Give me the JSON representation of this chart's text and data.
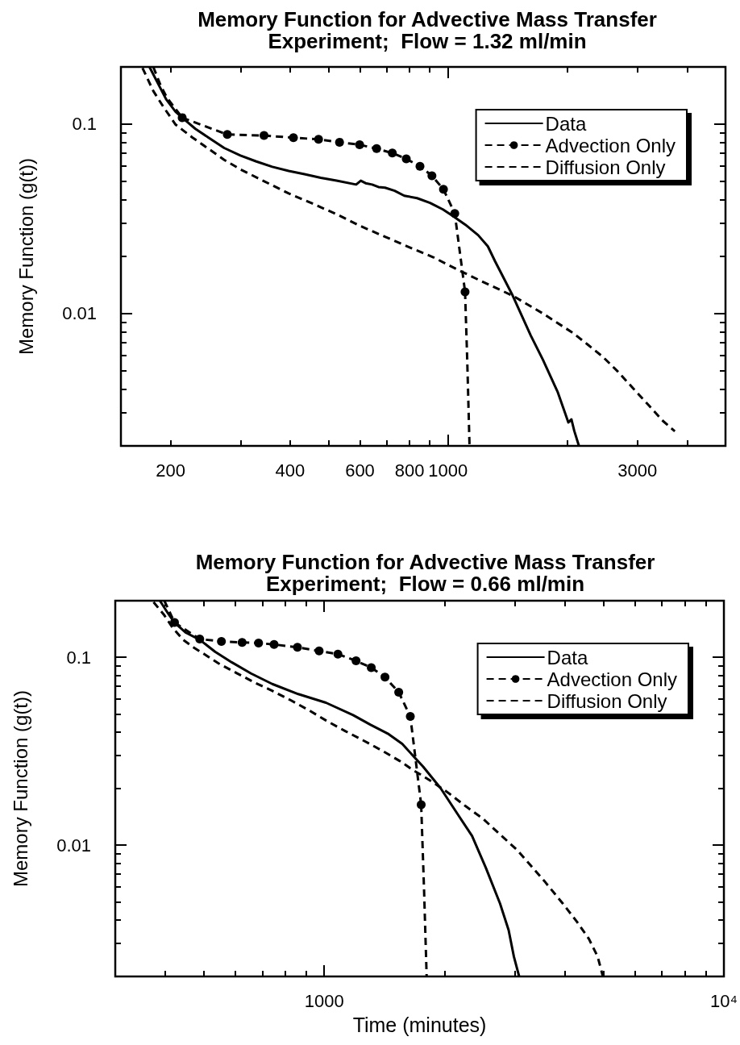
{
  "chart_data": [
    {
      "type": "line",
      "title": "Memory Function for Advective Mass Transfer\nExperiment;  Flow = 1.32 ml/min",
      "ylabel": "Memory Function (g(t))",
      "log": "xy",
      "legend": "top right",
      "xlim": [
        150,
        5000
      ],
      "ylim": [
        0.002,
        0.2
      ],
      "xticks": [
        200,
        {
          "value": 300,
          "label": null
        },
        400,
        {
          "value": 500,
          "label": null
        },
        600,
        {
          "value": 700,
          "label": null
        },
        800,
        {
          "value": 900,
          "label": null
        },
        1000,
        {
          "value": 2000,
          "label": null
        },
        3000,
        {
          "value": 4000,
          "label": null
        }
      ],
      "yticks": [
        {
          "value": 0.003,
          "label": null
        },
        {
          "value": 0.004,
          "label": null
        },
        {
          "value": 0.005,
          "label": null
        },
        {
          "value": 0.006,
          "label": null
        },
        {
          "value": 0.007,
          "label": null
        },
        {
          "value": 0.008,
          "label": null
        },
        {
          "value": 0.009,
          "label": null
        },
        {
          "value": 0.01,
          "label": "0.01"
        },
        {
          "value": 0.02,
          "label": null
        },
        {
          "value": 0.03,
          "label": null
        },
        {
          "value": 0.04,
          "label": null
        },
        {
          "value": 0.05,
          "label": null
        },
        {
          "value": 0.06,
          "label": null
        },
        {
          "value": 0.07,
          "label": null
        },
        {
          "value": 0.08,
          "label": null
        },
        {
          "value": 0.09,
          "label": null
        },
        {
          "value": 0.1,
          "label": "0.1"
        }
      ],
      "series": [
        {
          "name": "Data",
          "color": "#000000",
          "marker": "none",
          "line_style": "solid",
          "x": [
            177,
            195,
            206,
            214,
            231,
            249,
            273,
            300,
            329,
            361,
            397,
            435,
            478,
            524,
            587,
            603,
            620,
            644,
            668,
            694,
            734,
            776,
            836,
            901,
            971,
            1026,
            1106,
            1191,
            1260,
            1313,
            1456,
            1617,
            1734,
            1891,
            2010,
            2046,
            2080,
            2137
          ],
          "values": [
            0.2,
            0.135,
            0.116,
            0.108,
            0.0943,
            0.0849,
            0.0747,
            0.0681,
            0.0634,
            0.0594,
            0.0565,
            0.0543,
            0.052,
            0.0502,
            0.0479,
            0.0502,
            0.0487,
            0.0479,
            0.0465,
            0.0461,
            0.0444,
            0.0418,
            0.0406,
            0.0383,
            0.0354,
            0.0328,
            0.0294,
            0.0259,
            0.0226,
            0.0189,
            0.0124,
            0.00763,
            0.0057,
            0.00383,
            0.00266,
            0.00276,
            0.0024,
            0.002
          ]
        },
        {
          "name": "Advection Only",
          "color": "#000000",
          "marker": "circle",
          "line_style": "dashed",
          "x": [
            214,
            278,
            344,
            408,
            472,
            533,
            599,
            661,
            724,
            785,
            850,
            911,
            974,
            1040,
            1104
          ],
          "values": [
            0.108,
            0.088,
            0.0869,
            0.0846,
            0.083,
            0.0801,
            0.0777,
            0.0741,
            0.0702,
            0.0654,
            0.0598,
            0.0533,
            0.0452,
            0.0337,
            0.013
          ]
        },
        {
          "name": "Diffusion Only",
          "color": "#000000",
          "marker": "none",
          "line_style": "dashed",
          "x": [
            170,
            181,
            192,
            206,
            227,
            249,
            273,
            300,
            342,
            397,
            452,
            524,
            598,
            694,
            805,
            918,
            1065,
            1214,
            1456,
            1733,
            2062,
            2251,
            2454,
            2679,
            2922,
            3188,
            3478,
            3727
          ],
          "values": [
            0.1975,
            0.1493,
            0.1229,
            0.0992,
            0.0849,
            0.0741,
            0.0647,
            0.0576,
            0.0502,
            0.043,
            0.0383,
            0.0334,
            0.0291,
            0.0254,
            0.0222,
            0.0198,
            0.0169,
            0.0148,
            0.0124,
            0.01,
            0.0079,
            0.00684,
            0.00591,
            0.00493,
            0.00404,
            0.00331,
            0.00271,
            0.00239
          ]
        },
        {
          "color": "#000000",
          "marker": "none",
          "line_style": "dashed",
          "x": [
            181,
            189,
            196,
            214
          ],
          "values": [
            0.2,
            0.159,
            0.1375,
            0.108
          ]
        },
        {
          "color": "#000000",
          "marker": "none",
          "line_style": "dashed",
          "x": [
            1104,
            1118,
            1133
          ],
          "values": [
            0.013,
            0.00569,
            0.002
          ]
        }
      ]
    },
    {
      "type": "line",
      "title": "Memory Function for Advective Mass Transfer\nExperiment;  Flow = 0.66 ml/min",
      "xlabel": "Time (minutes)",
      "ylabel": "Memory Function (g(t))",
      "log": "xy",
      "legend": "top right",
      "xlim": [
        300,
        10000
      ],
      "ylim": [
        0.002,
        0.2
      ],
      "xticks": [
        {
          "value": 400,
          "label": null
        },
        {
          "value": 500,
          "label": null
        },
        {
          "value": 600,
          "label": null
        },
        {
          "value": 700,
          "label": null
        },
        {
          "value": 800,
          "label": null
        },
        {
          "value": 900,
          "label": null
        },
        1000,
        {
          "value": 2000,
          "label": null
        },
        {
          "value": 3000,
          "label": null
        },
        {
          "value": 4000,
          "label": null
        },
        {
          "value": 5000,
          "label": null
        },
        {
          "value": 6000,
          "label": null
        },
        {
          "value": 7000,
          "label": null
        },
        {
          "value": 8000,
          "label": null
        },
        {
          "value": 9000,
          "label": null
        },
        {
          "value": 10000,
          "label": "10⁴"
        }
      ],
      "yticks": [
        {
          "value": 0.003,
          "label": null
        },
        {
          "value": 0.004,
          "label": null
        },
        {
          "value": 0.005,
          "label": null
        },
        {
          "value": 0.006,
          "label": null
        },
        {
          "value": 0.007,
          "label": null
        },
        {
          "value": 0.008,
          "label": null
        },
        {
          "value": 0.009,
          "label": null
        },
        {
          "value": 0.01,
          "label": "0.01"
        },
        {
          "value": 0.02,
          "label": null
        },
        {
          "value": 0.03,
          "label": null
        },
        {
          "value": 0.04,
          "label": null
        },
        {
          "value": 0.05,
          "label": null
        },
        {
          "value": 0.06,
          "label": null
        },
        {
          "value": 0.07,
          "label": null
        },
        {
          "value": 0.08,
          "label": null
        },
        {
          "value": 0.09,
          "label": null
        },
        {
          "value": 0.1,
          "label": "0.1"
        }
      ],
      "series": [
        {
          "name": "Data",
          "color": "#000000",
          "marker": "none",
          "line_style": "solid",
          "x": [
            388,
            406,
            422,
            451,
            488,
            533,
            587,
            656,
            741,
            861,
            1010,
            1181,
            1306,
            1449,
            1567,
            1769,
            1955,
            2162,
            2343,
            2539,
            2753,
            2893,
            2982,
            3074
          ],
          "values": [
            0.2,
            0.172,
            0.153,
            0.135,
            0.124,
            0.107,
            0.094,
            0.082,
            0.0721,
            0.0637,
            0.0573,
            0.0492,
            0.0437,
            0.039,
            0.0346,
            0.0261,
            0.0201,
            0.0145,
            0.0112,
            0.00755,
            0.00489,
            0.00353,
            0.00255,
            0.002
          ]
        },
        {
          "name": "Advection Only",
          "color": "#000000",
          "marker": "circle",
          "line_style": "dashed",
          "x": [
            422,
            488,
            553,
            623,
            685,
            749,
            857,
            971,
            1082,
            1201,
            1311,
            1419,
            1536,
            1642,
            1748
          ],
          "values": [
            0.153,
            0.125,
            0.1215,
            0.12,
            0.119,
            0.117,
            0.113,
            0.108,
            0.104,
            0.0957,
            0.088,
            0.0784,
            0.0651,
            0.0484,
            0.0164
          ]
        },
        {
          "name": "Diffusion Only",
          "color": "#000000",
          "marker": "none",
          "line_style": "dashed",
          "x": [
            374,
            398,
            417,
            443,
            472,
            502,
            544,
            604,
            670,
            744,
            825,
            916,
            1017,
            1128,
            1252,
            1390,
            1543,
            1677,
            1734,
            1878,
            2056,
            2251,
            2489,
            2753,
            3043,
            3298,
            3574,
            3952,
            4280,
            4594,
            4832,
            4980
          ],
          "values": [
            0.1967,
            0.1673,
            0.1441,
            0.1242,
            0.1125,
            0.1036,
            0.0928,
            0.0823,
            0.0733,
            0.066,
            0.059,
            0.0522,
            0.0457,
            0.0405,
            0.0361,
            0.032,
            0.0281,
            0.0249,
            0.0239,
            0.0215,
            0.0188,
            0.0162,
            0.0139,
            0.0114,
            0.0094,
            0.00772,
            0.00635,
            0.00489,
            0.00393,
            0.00317,
            0.00255,
            0.002
          ]
        },
        {
          "color": "#000000",
          "marker": "none",
          "line_style": "dashed",
          "x": [
            398,
            410,
            422
          ],
          "values": [
            0.2,
            0.175,
            0.153
          ]
        },
        {
          "color": "#000000",
          "marker": "none",
          "line_style": "dashed",
          "x": [
            1748,
            1777,
            1804
          ],
          "values": [
            0.0164,
            0.00583,
            0.002
          ]
        }
      ]
    }
  ]
}
